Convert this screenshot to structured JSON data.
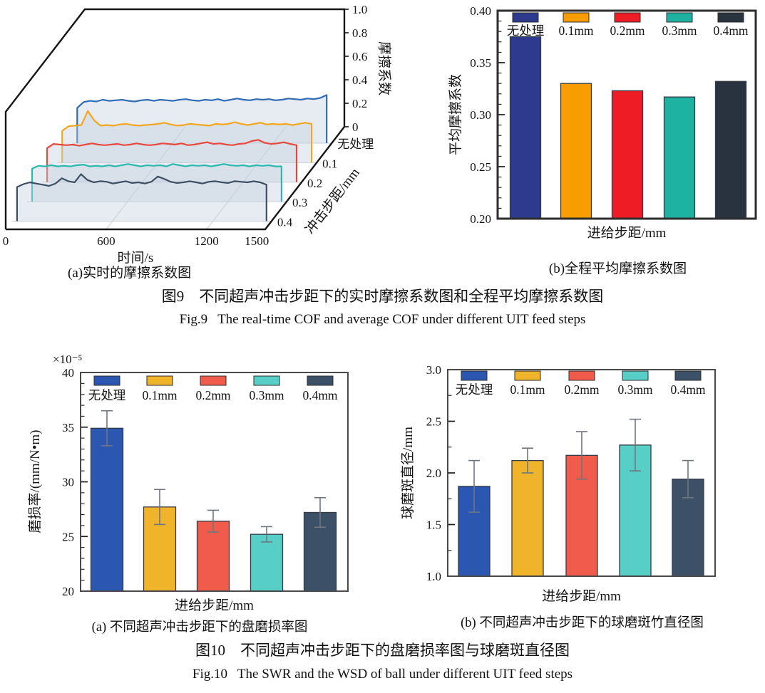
{
  "fig9": {
    "panel_a": {
      "caption": "(a)实时的摩擦系数图",
      "chart": {
        "type": "line3d-waterfall",
        "xlabel": "时间/s",
        "zlabel": "摩擦系数",
        "depth_label": "冲击步距/mm",
        "x_ticks": [
          0,
          600,
          1200,
          1500
        ],
        "x_max": 1550,
        "z_ticks": [
          0,
          0.2,
          0.4,
          0.6,
          0.8,
          1.0
        ],
        "z_tick_labels": [
          "0",
          "0.2",
          "0.4",
          "0.6",
          "0.8",
          "1.0"
        ],
        "zlim": [
          0,
          1.0
        ],
        "series": [
          {
            "name": "无处理",
            "color": "#2e6cb5",
            "depth": 0.84,
            "values": [
              0.3,
              0.35,
              0.36,
              0.355,
              0.37,
              0.36,
              0.365,
              0.37,
              0.36,
              0.355,
              0.365,
              0.37,
              0.36,
              0.37,
              0.365,
              0.36,
              0.37,
              0.375,
              0.365,
              0.36,
              0.37,
              0.365,
              0.375,
              0.36,
              0.37,
              0.38,
              0.37,
              0.365,
              0.375,
              0.37,
              0.375,
              0.365,
              0.37,
              0.38,
              0.375,
              0.37,
              0.38,
              0.375,
              0.385,
              0.41
            ]
          },
          {
            "name": "0.1",
            "color": "#f2a71c",
            "depth": 0.65,
            "values": [
              0.27,
              0.31,
              0.315,
              0.32,
              0.44,
              0.36,
              0.315,
              0.32,
              0.315,
              0.325,
              0.33,
              0.32,
              0.315,
              0.32,
              0.325,
              0.33,
              0.34,
              0.325,
              0.315,
              0.32,
              0.33,
              0.325,
              0.32,
              0.315,
              0.33,
              0.325,
              0.33,
              0.345,
              0.33,
              0.32,
              0.33,
              0.34,
              0.325,
              0.33,
              0.325,
              0.33,
              0.32,
              0.33,
              0.34,
              0.33
            ]
          },
          {
            "name": "0.2",
            "color": "#e8473c",
            "depth": 0.46,
            "values": [
              0.29,
              0.325,
              0.32,
              0.315,
              0.32,
              0.31,
              0.32,
              0.33,
              0.32,
              0.315,
              0.32,
              0.325,
              0.315,
              0.32,
              0.33,
              0.32,
              0.315,
              0.32,
              0.33,
              0.325,
              0.32,
              0.33,
              0.315,
              0.32,
              0.33,
              0.34,
              0.325,
              0.33,
              0.32,
              0.315,
              0.325,
              0.33,
              0.35,
              0.36,
              0.335,
              0.325,
              0.33,
              0.34,
              0.325,
              0.315
            ]
          },
          {
            "name": "0.3",
            "color": "#2bb9ad",
            "depth": 0.27,
            "values": [
              0.28,
              0.305,
              0.3,
              0.31,
              0.3,
              0.305,
              0.3,
              0.31,
              0.315,
              0.3,
              0.305,
              0.3,
              0.31,
              0.3,
              0.31,
              0.32,
              0.31,
              0.3,
              0.31,
              0.305,
              0.31,
              0.3,
              0.32,
              0.31,
              0.3,
              0.31,
              0.305,
              0.31,
              0.3,
              0.31,
              0.32,
              0.31,
              0.305,
              0.31,
              0.3,
              0.31,
              0.305,
              0.31,
              0.3,
              0.3
            ]
          },
          {
            "name": "0.4",
            "color": "#3d4f63",
            "depth": 0.08,
            "values": [
              0.29,
              0.315,
              0.33,
              0.32,
              0.31,
              0.3,
              0.32,
              0.365,
              0.34,
              0.33,
              0.4,
              0.35,
              0.33,
              0.34,
              0.335,
              0.32,
              0.33,
              0.34,
              0.325,
              0.33,
              0.32,
              0.335,
              0.38,
              0.36,
              0.335,
              0.325,
              0.33,
              0.34,
              0.33,
              0.32,
              0.335,
              0.34,
              0.33,
              0.325,
              0.34,
              0.335,
              0.33,
              0.34,
              0.33,
              0.31
            ]
          }
        ]
      }
    },
    "panel_b": {
      "caption": "(b)全程平均摩擦系数图",
      "chart": {
        "type": "bar",
        "categories": [
          "无处理",
          "0.1mm",
          "0.2mm",
          "0.3mm",
          "0.4mm"
        ],
        "values": [
          0.375,
          0.33,
          0.323,
          0.317,
          0.332
        ],
        "colors": [
          "#2d3a8e",
          "#f79d00",
          "#ee1c25",
          "#1eb3a1",
          "#28333f"
        ],
        "ylabel": "平均摩擦系数",
        "xlabel": "进给步距/mm",
        "ylim": [
          0.2,
          0.4
        ],
        "ytick_values": [
          0.2,
          0.25,
          0.3,
          0.35,
          0.4
        ],
        "ytick_labels": [
          "0.20",
          "0.25",
          "0.30",
          "0.35",
          "0.40"
        ],
        "minor_step": 0.01,
        "legend_position": "top-inside",
        "grid": false
      }
    },
    "caption_zh": "图9　不同超声冲击步距下的实时摩擦系数图和全程平均摩擦系数图",
    "caption_en": "Fig.9   The real-time COF and average COF under different UIT feed steps"
  },
  "fig10": {
    "panel_a": {
      "caption": "(a) 不同超声冲击步距下的盘磨损率图",
      "chart": {
        "type": "bar",
        "categories": [
          "无处理",
          "0.1mm",
          "0.2mm",
          "0.3mm",
          "0.4mm"
        ],
        "values": [
          34.9,
          27.7,
          26.4,
          25.2,
          27.2
        ],
        "errors": [
          1.6,
          1.6,
          1.0,
          0.7,
          1.35
        ],
        "colors": [
          "#2b57b0",
          "#f0b42a",
          "#f15b4b",
          "#58cfc6",
          "#3c5068"
        ],
        "ylabel": "磨损率/(mm/N•m)",
        "scale_label": "×10⁻⁵",
        "xlabel": "进给步距/mm",
        "ylim": [
          20,
          40
        ],
        "ytick_values": [
          20,
          25,
          30,
          35,
          40
        ],
        "ytick_labels": [
          "20",
          "25",
          "30",
          "35",
          "40"
        ],
        "minor_step": 1,
        "legend_position": "top-inside",
        "grid": false
      }
    },
    "panel_b": {
      "caption": "(b) 不同超声冲击步距下的球磨斑竹直径图",
      "chart": {
        "type": "bar",
        "categories": [
          "无处理",
          "0.1mm",
          "0.2mm",
          "0.3mm",
          "0.4mm"
        ],
        "values": [
          1.87,
          2.12,
          2.17,
          2.27,
          1.94
        ],
        "errors": [
          0.25,
          0.12,
          0.23,
          0.25,
          0.18
        ],
        "colors": [
          "#2b57b0",
          "#f0b42a",
          "#f15b4b",
          "#58cfc6",
          "#3c5068"
        ],
        "ylabel": "球磨斑直径/mm",
        "xlabel": "进给步距/mm",
        "ylim": [
          1.0,
          3.0
        ],
        "ytick_values": [
          1.0,
          1.5,
          2.0,
          2.5,
          3.0
        ],
        "ytick_labels": [
          "1.0",
          "1.5",
          "2.0",
          "2.5",
          "3.0"
        ],
        "minor_step": 0.25,
        "legend_position": "top-inside",
        "grid": false
      }
    },
    "caption_zh": "图10　不同超声冲击步距下的盘磨损率图与球磨斑直径图",
    "caption_en": "Fig.10   The SWR and the WSD of ball under different UIT feed steps"
  }
}
